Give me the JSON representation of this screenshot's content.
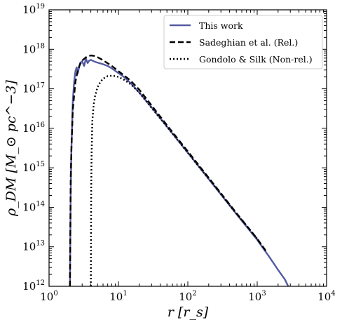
{
  "chart_data": {
    "type": "line",
    "xlabel": "r [r_s]",
    "ylabel": "ρ_DM [M_⊙ pc^−3]",
    "x_scale": "log",
    "y_scale": "log",
    "xlim": [
      1,
      10000
    ],
    "ylim": [
      1000000000000.0,
      1e+19
    ],
    "x_ticks": [
      {
        "mant": "10",
        "exp": "0",
        "value": 1
      },
      {
        "mant": "10",
        "exp": "1",
        "value": 10
      },
      {
        "mant": "10",
        "exp": "2",
        "value": 100
      },
      {
        "mant": "10",
        "exp": "3",
        "value": 1000
      },
      {
        "mant": "10",
        "exp": "4",
        "value": 10000
      }
    ],
    "y_ticks": [
      {
        "mant": "10",
        "exp": "12",
        "value": 1000000000000.0
      },
      {
        "mant": "10",
        "exp": "13",
        "value": 10000000000000.0
      },
      {
        "mant": "10",
        "exp": "14",
        "value": 100000000000000.0
      },
      {
        "mant": "10",
        "exp": "15",
        "value": 1000000000000000.0
      },
      {
        "mant": "10",
        "exp": "16",
        "value": 1e+16
      },
      {
        "mant": "10",
        "exp": "17",
        "value": 1e+17
      },
      {
        "mant": "10",
        "exp": "18",
        "value": 1e+18
      },
      {
        "mant": "10",
        "exp": "19",
        "value": 1e+19
      }
    ],
    "legend_position": "top-right",
    "grid": false,
    "series": [
      {
        "name": "This work",
        "color": "#545aa3",
        "style": "solid",
        "x": [
          2.0,
          2.05,
          2.1,
          2.2,
          2.3,
          2.4,
          2.5,
          2.6,
          2.8,
          3.0,
          3.2,
          3.4,
          3.6,
          3.8,
          4.0,
          4.5,
          5,
          6,
          7,
          8,
          10,
          12,
          15,
          20,
          30,
          50,
          100,
          200,
          500,
          1000,
          1500,
          2000,
          2500,
          2800
        ],
        "y": [
          1000000000000.0,
          200000000000000.0,
          3000000000000000.0,
          5e+16,
          1.5e+17,
          2.8e+17,
          3.5e+17,
          2.5e+17,
          4.5e+17,
          5e+17,
          3.8e+17,
          5.8e+17,
          4.5e+17,
          5.2e+17,
          5.4e+17,
          4.9e+17,
          4.6e+17,
          4.2e+17,
          3.8e+17,
          3.3e+17,
          2.5e+17,
          2e+17,
          1.4e+17,
          8e+16,
          3.4e+16,
          1.1e+16,
          2400000000000000.0,
          520000000000000.0,
          68000000000000.0,
          15000000000000.0,
          5500000000000.0,
          2600000000000.0,
          1500000000000.0,
          1000000000000.0
        ]
      },
      {
        "name": "Sadeghian et al. (Rel.)",
        "color": "#000000",
        "style": "dashed",
        "x": [
          2.0,
          2.05,
          2.1,
          2.2,
          2.4,
          2.6,
          2.8,
          3.0,
          3.5,
          4.0,
          4.5,
          5,
          6,
          8,
          10,
          12,
          15,
          20,
          30,
          50,
          100,
          200,
          500,
          1000,
          1400
        ],
        "y": [
          1000000000000.0,
          500000000000000.0,
          3000000000000000.0,
          3e+16,
          1.5e+17,
          3e+17,
          4.2e+17,
          5.2e+17,
          6.5e+17,
          7e+17,
          6.8e+17,
          6.3e+17,
          5.3e+17,
          3.8e+17,
          2.8e+17,
          2.2e+17,
          1.6e+17,
          9.5e+16,
          3.8e+16,
          1.2e+16,
          2600000000000000.0,
          560000000000000.0,
          72000000000000.0,
          16000000000000.0,
          7000000000000.0
        ]
      },
      {
        "name": "Gondolo & Silk (Non-rel.)",
        "color": "#000000",
        "style": "dotted",
        "x": [
          4.0,
          4.05,
          4.1,
          4.2,
          4.4,
          4.6,
          5,
          5.5,
          6,
          7,
          8,
          9,
          10,
          12,
          15,
          20,
          30,
          50,
          100,
          200,
          500,
          1000,
          1200
        ],
        "y": [
          1000000000000.0,
          300000000000000.0,
          2000000000000000.0,
          1.5e+16,
          4e+16,
          6.5e+16,
          1.1e+17,
          1.5e+17,
          1.8e+17,
          2.1e+17,
          2.15e+17,
          2.1e+17,
          2e+17,
          1.7e+17,
          1.3e+17,
          8e+16,
          3.3e+16,
          1.1e+16,
          2400000000000000.0,
          530000000000000.0,
          70000000000000.0,
          16000000000000.0,
          10000000000000.0
        ]
      }
    ]
  }
}
